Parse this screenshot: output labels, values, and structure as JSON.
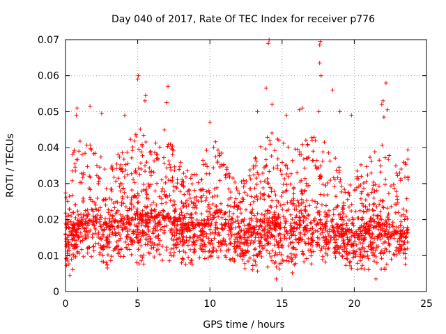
{
  "chart_data": {
    "type": "scatter",
    "title": "Day 040 of 2017, Rate Of TEC Index for receiver p776",
    "xlabel": "GPS time / hours",
    "ylabel": "ROTI / TECUs",
    "xlim": [
      0,
      25
    ],
    "ylim": [
      0,
      0.07
    ],
    "x_ticks": [
      "0",
      "5",
      "10",
      "15",
      "20",
      "25"
    ],
    "y_ticks": [
      "0",
      "0.01",
      "0.02",
      "0.03",
      "0.04",
      "0.05",
      "0.06",
      "0.07"
    ],
    "grid": true,
    "marker": "plus",
    "color": "#ff0000",
    "x_data_range": [
      0,
      23.75
    ],
    "envelope": [
      {
        "hour": 0.0,
        "low": 0.006,
        "mid": 0.016,
        "high": 0.03
      },
      {
        "hour": 0.5,
        "low": 0.005,
        "mid": 0.018,
        "high": 0.04
      },
      {
        "hour": 1.0,
        "low": 0.006,
        "mid": 0.019,
        "high": 0.042
      },
      {
        "hour": 2.0,
        "low": 0.006,
        "mid": 0.02,
        "high": 0.041
      },
      {
        "hour": 2.5,
        "low": 0.005,
        "mid": 0.018,
        "high": 0.038
      },
      {
        "hour": 3.0,
        "low": 0.006,
        "mid": 0.018,
        "high": 0.036
      },
      {
        "hour": 4.0,
        "low": 0.006,
        "mid": 0.019,
        "high": 0.04
      },
      {
        "hour": 5.0,
        "low": 0.007,
        "mid": 0.021,
        "high": 0.046
      },
      {
        "hour": 6.0,
        "low": 0.007,
        "mid": 0.021,
        "high": 0.045
      },
      {
        "hour": 7.0,
        "low": 0.007,
        "mid": 0.021,
        "high": 0.046
      },
      {
        "hour": 8.0,
        "low": 0.006,
        "mid": 0.019,
        "high": 0.036
      },
      {
        "hour": 9.0,
        "low": 0.006,
        "mid": 0.018,
        "high": 0.034
      },
      {
        "hour": 10.0,
        "low": 0.006,
        "mid": 0.02,
        "high": 0.04
      },
      {
        "hour": 10.5,
        "low": 0.007,
        "mid": 0.022,
        "high": 0.042
      },
      {
        "hour": 11.0,
        "low": 0.006,
        "mid": 0.019,
        "high": 0.038
      },
      {
        "hour": 12.0,
        "low": 0.005,
        "mid": 0.016,
        "high": 0.032
      },
      {
        "hour": 13.0,
        "low": 0.005,
        "mid": 0.017,
        "high": 0.036
      },
      {
        "hour": 14.0,
        "low": 0.006,
        "mid": 0.019,
        "high": 0.048
      },
      {
        "hour": 15.0,
        "low": 0.005,
        "mid": 0.018,
        "high": 0.043
      },
      {
        "hour": 16.0,
        "low": 0.006,
        "mid": 0.018,
        "high": 0.04
      },
      {
        "hour": 17.0,
        "low": 0.006,
        "mid": 0.019,
        "high": 0.044
      },
      {
        "hour": 18.0,
        "low": 0.006,
        "mid": 0.019,
        "high": 0.043
      },
      {
        "hour": 19.0,
        "low": 0.006,
        "mid": 0.017,
        "high": 0.036
      },
      {
        "hour": 20.0,
        "low": 0.005,
        "mid": 0.016,
        "high": 0.034
      },
      {
        "hour": 21.0,
        "low": 0.005,
        "mid": 0.017,
        "high": 0.037
      },
      {
        "hour": 22.0,
        "low": 0.005,
        "mid": 0.018,
        "high": 0.042
      },
      {
        "hour": 23.0,
        "low": 0.006,
        "mid": 0.016,
        "high": 0.034
      },
      {
        "hour": 23.75,
        "low": 0.007,
        "mid": 0.017,
        "high": 0.04
      }
    ],
    "notable_points": [
      {
        "x": 0.75,
        "y": 0.049
      },
      {
        "x": 0.8,
        "y": 0.051
      },
      {
        "x": 1.7,
        "y": 0.0515
      },
      {
        "x": 2.5,
        "y": 0.0495
      },
      {
        "x": 4.1,
        "y": 0.049
      },
      {
        "x": 5.0,
        "y": 0.059
      },
      {
        "x": 5.05,
        "y": 0.06
      },
      {
        "x": 5.5,
        "y": 0.053
      },
      {
        "x": 5.55,
        "y": 0.0545
      },
      {
        "x": 7.1,
        "y": 0.057
      },
      {
        "x": 7.0,
        "y": 0.0525
      },
      {
        "x": 10.0,
        "y": 0.047
      },
      {
        "x": 13.3,
        "y": 0.05
      },
      {
        "x": 13.9,
        "y": 0.0565
      },
      {
        "x": 14.05,
        "y": 0.069
      },
      {
        "x": 14.1,
        "y": 0.07
      },
      {
        "x": 14.3,
        "y": 0.052
      },
      {
        "x": 15.3,
        "y": 0.049
      },
      {
        "x": 16.2,
        "y": 0.0505
      },
      {
        "x": 16.4,
        "y": 0.051
      },
      {
        "x": 17.6,
        "y": 0.0685
      },
      {
        "x": 17.65,
        "y": 0.0695
      },
      {
        "x": 17.6,
        "y": 0.0635
      },
      {
        "x": 17.7,
        "y": 0.06
      },
      {
        "x": 17.55,
        "y": 0.05
      },
      {
        "x": 18.5,
        "y": 0.056
      },
      {
        "x": 19.0,
        "y": 0.05
      },
      {
        "x": 19.8,
        "y": 0.049
      },
      {
        "x": 21.9,
        "y": 0.052
      },
      {
        "x": 22.0,
        "y": 0.053
      },
      {
        "x": 22.2,
        "y": 0.058
      },
      {
        "x": 22.3,
        "y": 0.0505
      },
      {
        "x": 22.05,
        "y": 0.0485
      },
      {
        "x": 0.3,
        "y": 0.0045
      },
      {
        "x": 14.6,
        "y": 0.0035
      },
      {
        "x": 21.5,
        "y": 0.0035
      }
    ],
    "samples_per_hour": 110
  }
}
